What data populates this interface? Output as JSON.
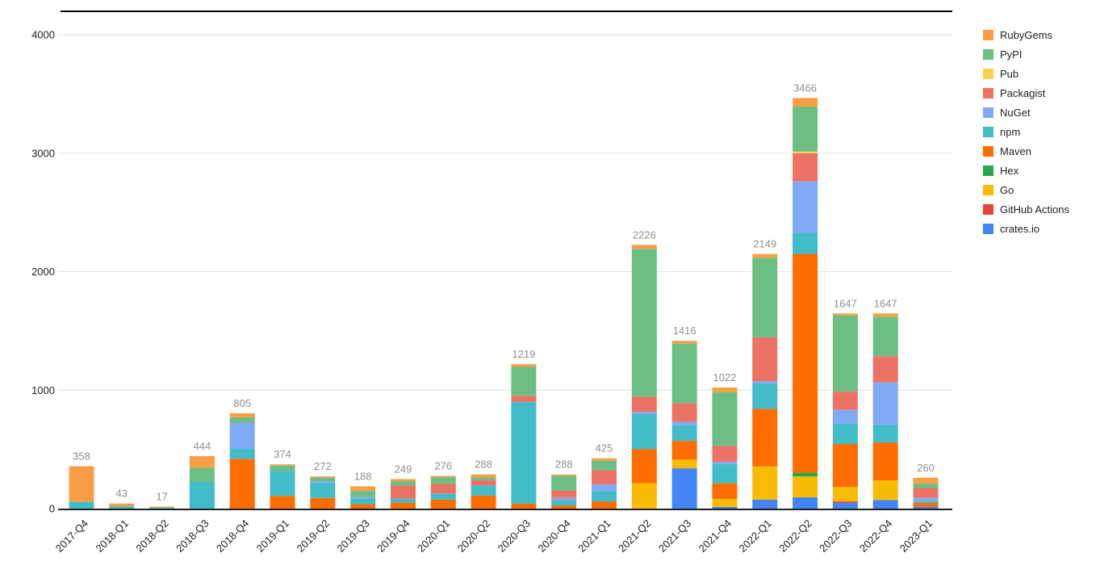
{
  "chart_data": {
    "type": "bar",
    "stacked": true,
    "title": "",
    "xlabel": "",
    "ylabel": "",
    "grid": true,
    "categories": [
      "2017-Q4",
      "2018-Q1",
      "2018-Q2",
      "2018-Q3",
      "2018-Q4",
      "2019-Q1",
      "2019-Q2",
      "2019-Q3",
      "2019-Q4",
      "2020-Q1",
      "2020-Q2",
      "2020-Q3",
      "2020-Q4",
      "2021-Q1",
      "2021-Q2",
      "2021-Q3",
      "2021-Q4",
      "2022-Q1",
      "2022-Q2",
      "2022-Q3",
      "2022-Q4",
      "2023-Q1"
    ],
    "totals": [
      358,
      43,
      17,
      444,
      805,
      374,
      272,
      188,
      249,
      276,
      288,
      1219,
      288,
      425,
      2226,
      1416,
      1022,
      2149,
      3466,
      1647,
      1647,
      260
    ],
    "y_axis": {
      "min": 0,
      "max": 4000,
      "tick_interval": 1000,
      "tick_labels": [
        "0",
        "1000",
        "2000",
        "3000",
        "4000"
      ]
    },
    "legend": {
      "position": "right",
      "order_top_to_bottom": [
        "RubyGems",
        "PyPI",
        "Pub",
        "Packagist",
        "NuGet",
        "npm",
        "Maven",
        "Hex",
        "Go",
        "GitHub Actions",
        "crates.io"
      ]
    },
    "stack_order_bottom_to_top": [
      "crates.io",
      "GitHub Actions",
      "Go",
      "Hex",
      "Maven",
      "npm",
      "NuGet",
      "Packagist",
      "Pub",
      "PyPI",
      "RubyGems"
    ],
    "series": [
      {
        "name": "RubyGems",
        "color": "#FA9E45",
        "values": [
          301,
          24,
          8,
          99,
          34,
          11,
          11,
          39,
          18,
          11,
          24,
          23,
          11,
          20,
          34,
          23,
          39,
          32,
          73,
          18,
          27,
          48
        ]
      },
      {
        "name": "PyPI",
        "color": "#6DBE82",
        "values": [
          0,
          0,
          0,
          120,
          45,
          45,
          30,
          52,
          36,
          57,
          23,
          243,
          123,
          81,
          1247,
          504,
          452,
          671,
          379,
          642,
          333,
          38
        ]
      },
      {
        "name": "Pub",
        "color": "#FBD24D",
        "values": [
          0,
          0,
          0,
          0,
          0,
          0,
          0,
          0,
          0,
          0,
          0,
          0,
          0,
          0,
          0,
          0,
          0,
          0,
          14,
          0,
          0,
          0
        ]
      },
      {
        "name": "Packagist",
        "color": "#EC7266",
        "values": [
          0,
          0,
          0,
          0,
          0,
          0,
          0,
          0,
          112,
          80,
          45,
          52,
          64,
          120,
          129,
          156,
          136,
          370,
          238,
          154,
          222,
          84
        ]
      },
      {
        "name": "NuGet",
        "color": "#80AAF6",
        "values": [
          0,
          0,
          0,
          0,
          222,
          0,
          16,
          10,
          0,
          0,
          0,
          0,
          18,
          57,
          16,
          29,
          18,
          23,
          435,
          118,
          355,
          24
        ]
      },
      {
        "name": "npm",
        "color": "#42BCC8",
        "values": [
          57,
          19,
          9,
          225,
          84,
          211,
          125,
          50,
          33,
          52,
          86,
          860,
          45,
          86,
          297,
          132,
          163,
          211,
          177,
          170,
          152,
          18
        ]
      },
      {
        "name": "Maven",
        "color": "#FF6D00",
        "values": [
          0,
          0,
          0,
          0,
          420,
          107,
          90,
          37,
          50,
          76,
          110,
          41,
          27,
          61,
          288,
          159,
          132,
          486,
          1846,
          363,
          320,
          34
        ]
      },
      {
        "name": "Hex",
        "color": "#27A74D",
        "values": [
          0,
          0,
          0,
          0,
          0,
          0,
          0,
          0,
          0,
          0,
          0,
          0,
          0,
          0,
          0,
          0,
          0,
          0,
          32,
          0,
          0,
          0
        ]
      },
      {
        "name": "Go",
        "color": "#FABB05",
        "values": [
          0,
          0,
          0,
          0,
          0,
          0,
          0,
          0,
          0,
          0,
          0,
          0,
          0,
          0,
          215,
          73,
          68,
          281,
          177,
          120,
          165,
          0
        ]
      },
      {
        "name": "GitHub Actions",
        "color": "#E6453C",
        "values": [
          0,
          0,
          0,
          0,
          0,
          0,
          0,
          0,
          0,
          0,
          0,
          0,
          0,
          0,
          0,
          0,
          0,
          0,
          0,
          12,
          0,
          0
        ]
      },
      {
        "name": "crates.io",
        "color": "#4385F4",
        "values": [
          0,
          0,
          0,
          0,
          0,
          0,
          0,
          0,
          0,
          0,
          0,
          0,
          0,
          0,
          0,
          340,
          14,
          75,
          95,
          50,
          73,
          14
        ]
      }
    ]
  },
  "colors": {
    "background": "#ffffff",
    "gridline": "#e3e3e3",
    "axis_line": "#1f1f1f",
    "top_border": "#000000",
    "tick_text": "#1f1f1f",
    "total_text": "#8c8f94"
  }
}
